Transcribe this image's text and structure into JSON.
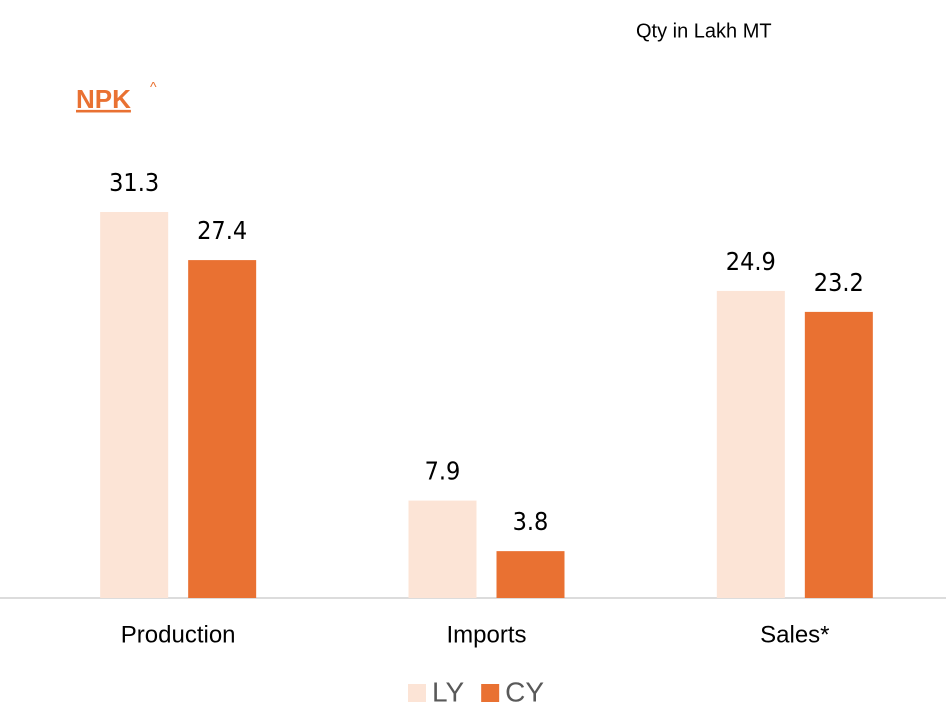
{
  "chart_data": {
    "type": "bar",
    "title": "NPK",
    "title_suffix": "^",
    "subtitle": "Qty in Lakh MT",
    "categories": [
      "Production",
      "Imports",
      "Sales*"
    ],
    "series": [
      {
        "name": "LY",
        "color": "#fce4d6",
        "values": [
          31.3,
          7.9,
          24.9
        ]
      },
      {
        "name": "CY",
        "color": "#e97132",
        "values": [
          27.4,
          3.8,
          23.2
        ]
      }
    ],
    "legend": "bottom"
  }
}
